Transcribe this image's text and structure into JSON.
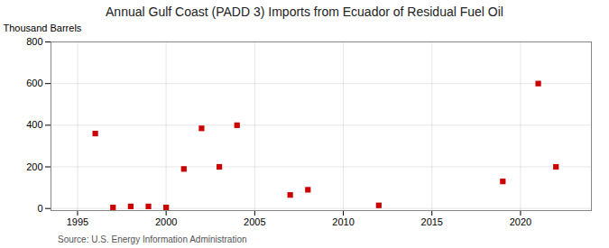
{
  "chart_data": {
    "type": "scatter",
    "title": "Annual Gulf Coast (PADD 3) Imports from Ecuador of Residual Fuel Oil",
    "ylabel": "Thousand Barrels",
    "source": "Source: U.S. Energy Information Administration",
    "x": [
      1996,
      1997,
      1998,
      1999,
      2000,
      2001,
      2002,
      2003,
      2004,
      2007,
      2008,
      2012,
      2019,
      2021,
      2022
    ],
    "values": [
      360,
      5,
      10,
      10,
      5,
      190,
      385,
      200,
      400,
      65,
      90,
      15,
      130,
      600,
      200
    ],
    "xlim": [
      1993.5,
      2024
    ],
    "ylim": [
      -10,
      800
    ],
    "xticks": [
      1995,
      2000,
      2005,
      2010,
      2015,
      2020
    ],
    "yticks": [
      0,
      200,
      400,
      600,
      800
    ],
    "color": "#cc0000",
    "marker": "square",
    "grid": true
  }
}
